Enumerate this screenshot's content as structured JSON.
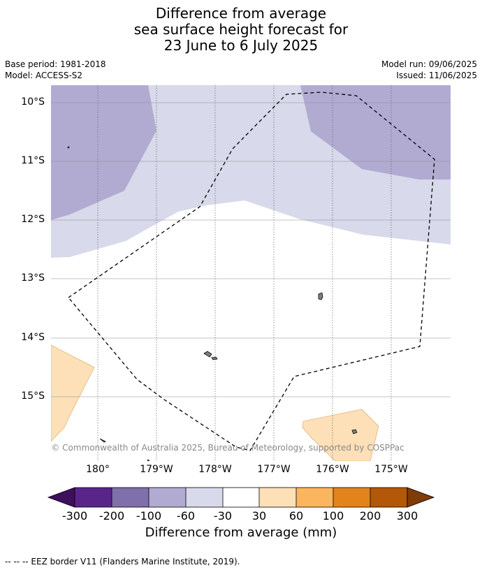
{
  "title": {
    "line1": "Difference from average",
    "line2": "sea surface height forecast for",
    "line3": "23 June to 6 July 2025"
  },
  "meta": {
    "base_period": "Base period: 1981-2018",
    "model": "Model: ACCESS-S2",
    "model_run": "Model run: 09/06/2025",
    "issued": "Issued: 11/06/2025"
  },
  "map": {
    "lat_labels": [
      "10°S",
      "11°S",
      "12°S",
      "13°S",
      "14°S",
      "15°S"
    ],
    "lon_labels": [
      "180°",
      "179°W",
      "178°W",
      "177°W",
      "176°W",
      "175°W"
    ],
    "copyright": "© Commonwealth of Australia 2025, Bureau of Meteorology, supported by COSPPac",
    "colors": {
      "band_minus100_minus60": "#b1abd2",
      "band_minus60_minus30": "#d8d9ea",
      "band_30_60": "#fde0b8",
      "land": "#808080",
      "eez_border": "#000000",
      "grid": "#999999"
    }
  },
  "colorbar": {
    "label": "Difference from average (mm)",
    "ticks": [
      "-300",
      "-200",
      "-100",
      "-60",
      "-30",
      "30",
      "60",
      "100",
      "200",
      "300"
    ],
    "colors": [
      "#3f0f5e",
      "#5a2589",
      "#7f6faa",
      "#b1abd2",
      "#d8d9ea",
      "#ffffff",
      "#fde0b8",
      "#fbb55f",
      "#e2841b",
      "#b35806",
      "#7f3b08"
    ]
  },
  "footnote": "--  --  -- EEZ border V11 (Flanders Marine Institute, 2019)."
}
